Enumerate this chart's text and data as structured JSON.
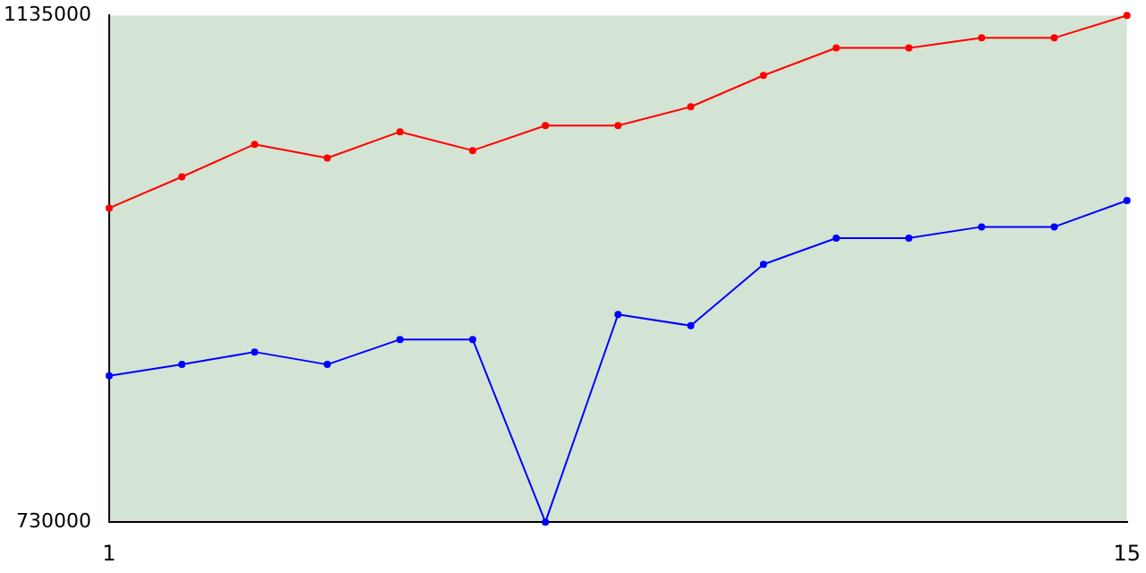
{
  "chart_data": {
    "type": "line",
    "x": [
      1,
      2,
      3,
      4,
      5,
      6,
      7,
      8,
      9,
      10,
      11,
      12,
      13,
      14,
      15
    ],
    "series": [
      {
        "color": "#ff0000",
        "values": [
          981000,
          1006000,
          1032000,
          1021000,
          1042000,
          1027000,
          1047000,
          1047000,
          1062000,
          1087000,
          1109000,
          1109000,
          1117000,
          1117000,
          1135000
        ]
      },
      {
        "color": "#0000ff",
        "values": [
          847000,
          856000,
          866000,
          856000,
          876000,
          876000,
          730000,
          896000,
          887000,
          936000,
          957000,
          957000,
          966000,
          966000,
          987000
        ]
      }
    ],
    "xlim": [
      1,
      15
    ],
    "xticks": [
      1,
      15
    ],
    "ylim": [
      730000,
      1135000
    ],
    "yticks": [
      730000,
      1135000
    ],
    "grid": false,
    "legend": false,
    "marker": "circle",
    "line_style": "solid"
  }
}
